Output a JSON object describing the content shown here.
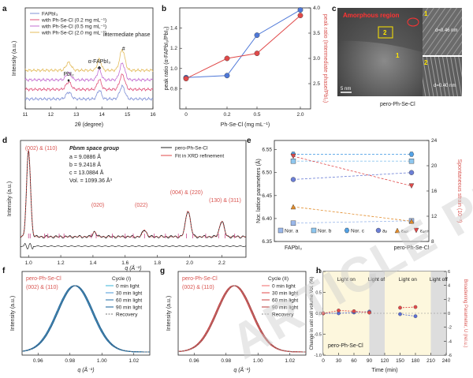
{
  "figure": {
    "watermark": "ARTICLE PREVIEW",
    "panel_letters": [
      "a",
      "b",
      "c",
      "d",
      "e",
      "f",
      "g",
      "h"
    ]
  },
  "chart_data": [
    {
      "id": "a",
      "type": "line",
      "xlabel": "2θ (degree)",
      "ylabel": "Intensity (a.u.)",
      "xlim": [
        11,
        16
      ],
      "xticks": [
        11,
        12,
        13,
        14,
        15,
        16
      ],
      "legend": [
        "FAPbI₃",
        "with Ph-Se-Cl (0.2 mg mL⁻¹)",
        "with Ph-Se-Cl (0.5 mg mL⁻¹)",
        "with Ph-Se-Cl (2.0 mg mL⁻¹)"
      ],
      "series_colors": [
        "#7f90d6",
        "#e0527a",
        "#c36fd1",
        "#e4bd5e"
      ],
      "series_offsets": [
        0,
        0.22,
        0.44,
        0.66
      ],
      "peaks": [
        {
          "x": 12.7,
          "amp": [
            0.35,
            0.38,
            0.36,
            0.4
          ],
          "w": 0.1
        },
        {
          "x": 13.9,
          "amp": [
            0.45,
            0.5,
            0.52,
            0.55
          ],
          "w": 0.08
        },
        {
          "x": 14.8,
          "amp": [
            0.65,
            0.75,
            0.85,
            1.05
          ],
          "w": 0.1
        }
      ],
      "annotations": [
        {
          "text": "PbI₂",
          "x": 12.7,
          "marker": "♦"
        },
        {
          "text": "α-FAPbI₃",
          "x": 13.9,
          "marker": "♣"
        },
        {
          "text": "intermediate phase",
          "x": 14.85,
          "marker": "#"
        }
      ]
    },
    {
      "id": "b",
      "type": "line",
      "xlabel": "Ph-Se-Cl (mg mL⁻¹)",
      "ylabel": "peak ratio (α-FAPbI₃/PbI₂)",
      "ylabel_right": "peak ratio (Intermediate phase/PbI₂)",
      "x": [
        0,
        0.2,
        0.5,
        2.0
      ],
      "xticks": [
        "0",
        "0.2",
        "0.5",
        "2.0"
      ],
      "ylim": [
        0.6,
        1.6
      ],
      "yticks": [
        0.8,
        1.0,
        1.2,
        1.4
      ],
      "ylim_right": [
        2.0,
        4.0
      ],
      "yticks_right": [
        2.5,
        3.0,
        3.5,
        4.0
      ],
      "series": [
        {
          "name": "α-FAPbI₃/PbI₂",
          "axis": "left",
          "color": "#4e78d8",
          "values": [
            0.91,
            0.93,
            1.33,
            1.58
          ]
        },
        {
          "name": "Intermediate phase/PbI₂",
          "axis": "right",
          "color": "#e04a4a",
          "values": [
            2.6,
            3.0,
            3.1,
            3.85
          ]
        }
      ]
    },
    {
      "id": "d",
      "type": "line",
      "xlabel": "q (Å⁻¹)",
      "ylabel": "Intensity (a.u.)",
      "xlim": [
        0.95,
        2.35
      ],
      "xticks": [
        1.0,
        1.2,
        1.4,
        1.6,
        1.8,
        2.0,
        2.2
      ],
      "legend": [
        "pero-Ph-Se-Cl",
        "Fit in XRD refinement"
      ],
      "space_group": "Pbnm space group",
      "lattice": [
        "a = 9.0886 Å",
        "b = 9.2418 Å",
        "c = 13.0884 Å",
        "Vol. = 1099.36 Å³"
      ],
      "peak_labels": [
        {
          "text": "(002) & (110)",
          "x": 1.0
        },
        {
          "text": "(020)",
          "x": 1.43
        },
        {
          "text": "(022)",
          "x": 1.7
        },
        {
          "text": "(004) & (220)",
          "x": 1.98
        },
        {
          "text": "(130) & (311)",
          "x": 2.22
        }
      ],
      "peaks": [
        {
          "x": 1.0,
          "amp": 1.0,
          "w": 0.012
        },
        {
          "x": 1.41,
          "amp": 0.06,
          "w": 0.01
        },
        {
          "x": 1.72,
          "amp": 0.08,
          "w": 0.012
        },
        {
          "x": 1.99,
          "amp": 0.3,
          "w": 0.015
        },
        {
          "x": 2.2,
          "amp": 0.18,
          "w": 0.014
        }
      ],
      "reflection_ticks": [
        1.0,
        1.01,
        1.1,
        1.12,
        1.19,
        1.22,
        1.39,
        1.42,
        1.52,
        1.6,
        1.65,
        1.72,
        1.78,
        1.85,
        1.93,
        1.98,
        2.02,
        2.1,
        2.18,
        2.22,
        2.28
      ]
    },
    {
      "id": "e",
      "type": "scatter",
      "ylabel": "Nor. lattice parameters (Å)",
      "ylabel_right": "Spontaneous strain (10⁻³)",
      "categories": [
        "FAPbI₃",
        "pero-Ph-Se-Cl"
      ],
      "ylim": [
        6.35,
        6.57
      ],
      "yticks": [
        6.35,
        6.4,
        6.45,
        6.5,
        6.55
      ],
      "ylim_right": [
        8,
        24
      ],
      "yticks_right": [
        8,
        12,
        16,
        20,
        24
      ],
      "legend": [
        "Nor. a",
        "Nor. b",
        "Nor. c",
        "aₚ",
        "εᵥₒₗ",
        "εₒᵣₜₕ"
      ],
      "series": [
        {
          "name": "Nor. a",
          "axis": "left",
          "values": [
            6.39,
            6.395
          ],
          "color": "#9bb8ea"
        },
        {
          "name": "Nor. b",
          "axis": "left",
          "values": [
            6.525,
            6.525
          ],
          "color": "#8fc7ef"
        },
        {
          "name": "Nor. c",
          "axis": "left",
          "values": [
            6.54,
            6.54
          ],
          "color": "#53a2e6"
        },
        {
          "name": "aₚ",
          "axis": "left",
          "values": [
            6.485,
            6.5
          ],
          "color": "#6c7fd6"
        },
        {
          "name": "εᵥₒₗ",
          "axis": "right",
          "values": [
            13.5,
            11.2
          ],
          "color": "#e28c2b"
        },
        {
          "name": "εₒᵣₜₕ",
          "axis": "right",
          "values": [
            21.5,
            16.8
          ],
          "color": "#e04a4a"
        }
      ]
    },
    {
      "id": "f",
      "type": "line",
      "xlabel": "q (Å⁻¹)",
      "ylabel": "Intensity (a.u.)",
      "title": "pero-Ph-Se-Cl",
      "peak_label": "(002) & (110)",
      "legend_title": "Cycle (I)",
      "xlim": [
        0.95,
        1.03
      ],
      "xticks": [
        "0.96",
        "0.98",
        "1.00",
        "1.02"
      ],
      "center": 0.983,
      "sigma": 0.011,
      "legend": [
        "0 min light",
        "30 min light",
        "60 min light",
        "90 min light",
        "Recovery"
      ],
      "colors": [
        "#39b5d8",
        "#4a9ad8",
        "#1f6ca8",
        "#0f5f9a",
        "#777777"
      ]
    },
    {
      "id": "g",
      "type": "line",
      "xlabel": "q (Å⁻¹)",
      "ylabel": "Intensity (a.u.)",
      "title": "pero-Ph-Se-Cl",
      "peak_label": "(002) & (110)",
      "legend_title": "Cycle (II)",
      "xlim": [
        0.95,
        1.03
      ],
      "xticks": [
        "0.96",
        "0.98",
        "1.00",
        "1.02"
      ],
      "center": 0.985,
      "sigma": 0.011,
      "legend": [
        "0 min light",
        "30 min light",
        "60 min light",
        "90 min light",
        "Recovery"
      ],
      "colors": [
        "#f06a6a",
        "#e04a4a",
        "#c94040",
        "#b83a3a",
        "#888888"
      ]
    },
    {
      "id": "h",
      "type": "line",
      "xlabel": "Time (min)",
      "ylabel": "Change in unit cell volume Vol. (%)",
      "ylabel_right": "Broadening Parameter, U (rel.u.)",
      "x": [
        0,
        30,
        60,
        90,
        120,
        150,
        180,
        210,
        240
      ],
      "xticks": [
        "0",
        "30",
        "60",
        "90",
        "120",
        "150",
        "180",
        "210",
        "240"
      ],
      "ylim": [
        -1.0,
        1.0
      ],
      "yticks": [
        "-1.0",
        "-0.5",
        "0.0",
        "0.5",
        "1.0"
      ],
      "ylim_right": [
        -6,
        6
      ],
      "yticks_right": [
        "-6",
        "-4",
        "-2",
        "0",
        "2",
        "4",
        "6"
      ],
      "bands": [
        {
          "label": "Light on",
          "from": 0,
          "to": 90,
          "color": "#fdf6d9"
        },
        {
          "label": "Light off",
          "from": 90,
          "to": 120,
          "color": "#d9d9d9"
        },
        {
          "label": "Light on",
          "from": 120,
          "to": 210,
          "color": "#fdf6d9"
        },
        {
          "label": "Light off",
          "from": 210,
          "to": 240,
          "color": "#d9d9d9"
        }
      ],
      "series": [
        {
          "name": "Vol. change",
          "axis": "left",
          "color": "#5b6fd4",
          "x": [
            0,
            30,
            60,
            90,
            150,
            180
          ],
          "values": [
            0.0,
            0.0,
            0.02,
            0.04,
            -0.02,
            -0.07
          ]
        },
        {
          "name": "U",
          "axis": "right",
          "color": "#e04a4a",
          "x": [
            0,
            30,
            60,
            90,
            150,
            180
          ],
          "values": [
            0.0,
            0.4,
            0.3,
            0.1,
            0.8,
            0.9
          ]
        }
      ],
      "inner_label": "pero-Ph-Se-Cl"
    }
  ],
  "tem": {
    "amorphous_label": "Amorphous region",
    "scale_bar": "5 nm",
    "caption": "pero-Ph-Se-Cl",
    "region_labels": [
      "1",
      "2"
    ],
    "inset_labels": [
      "1",
      "2"
    ],
    "d_spacings": [
      "d=0.46 nm",
      "d=0.40 nm"
    ]
  }
}
